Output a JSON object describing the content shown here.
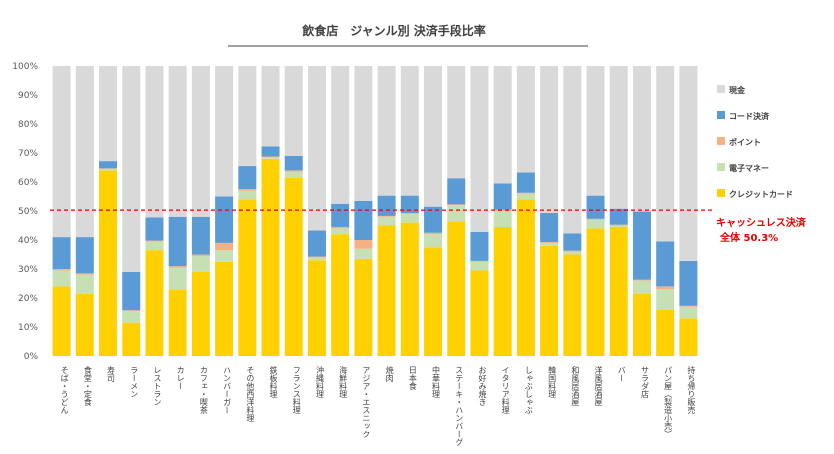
{
  "chart_data": {
    "type": "bar",
    "stacked": true,
    "percent": true,
    "title": "飲食店　ジャンル別 決済手段比率",
    "ylim": [
      0,
      100
    ],
    "yticks": [
      "0%",
      "10%",
      "20%",
      "30%",
      "40%",
      "50%",
      "60%",
      "70%",
      "80%",
      "90%",
      "100%"
    ],
    "categories": [
      "そば・うどん",
      "食堂・定食",
      "寿司",
      "ラーメン",
      "レストラン",
      "カレー",
      "カフェ・喫茶",
      "ハンバーガー",
      "その他西洋料理",
      "鉄板料理",
      "フランス料理",
      "沖縄料理",
      "海鮮料理",
      "アジア・エスニック",
      "焼肉",
      "日本食",
      "中華料理",
      "ステーキ・ハンバーグ",
      "お好み焼き",
      "イタリア料理",
      "しゃぶしゃぶ",
      "韓国料理",
      "和風居酒屋",
      "洋風居酒屋",
      "バー",
      "サラダ店",
      "パン屋（製造小売）",
      "持ち帰り販売"
    ],
    "series": [
      {
        "name": "クレジットカード",
        "color": "#ffd100",
        "values": [
          24,
          21.5,
          64,
          11.5,
          36.5,
          23,
          29,
          32.5,
          54,
          68,
          61.5,
          33,
          42,
          33.5,
          45,
          46,
          37.5,
          46.5,
          29.5,
          44.5,
          54,
          38,
          35,
          44,
          44.5,
          21.5,
          16,
          13
        ]
      },
      {
        "name": "電子マネー",
        "color": "#c6e0b4",
        "values": [
          5.5,
          6.5,
          0.5,
          4,
          3,
          7.5,
          5.5,
          4,
          3,
          0.5,
          2,
          1,
          2,
          3.5,
          3,
          3,
          4.5,
          5.5,
          3,
          5.5,
          2,
          1,
          1,
          3,
          0.5,
          4.5,
          7,
          4
        ]
      },
      {
        "name": "ポイント",
        "color": "#f4b183",
        "values": [
          0.5,
          0.5,
          0.2,
          0.3,
          0.3,
          0.5,
          0.5,
          2.5,
          0.5,
          0.3,
          0.5,
          0.3,
          0.5,
          3,
          0.3,
          0.3,
          0.5,
          0.3,
          0.3,
          0.5,
          0.3,
          0.3,
          0.3,
          0.3,
          0.3,
          0.3,
          1,
          0.3
        ]
      },
      {
        "name": "コード決済",
        "color": "#5b9bd5",
        "values": [
          11,
          12.5,
          2.5,
          13.2,
          8,
          17,
          13,
          16,
          8,
          3.5,
          5,
          9,
          8,
          13.5,
          7,
          6,
          9,
          9,
          10,
          9,
          7,
          10,
          6,
          8,
          5.5,
          23.5,
          15.5,
          15.5
        ]
      },
      {
        "name": "現金",
        "color": "#d9d9d9",
        "values": [
          59,
          59,
          32.8,
          71,
          52.2,
          52,
          52,
          45,
          34.5,
          27.7,
          31,
          56.7,
          47.5,
          46.5,
          44.7,
          44.7,
          48.5,
          38.7,
          57.2,
          40.5,
          36.7,
          50.7,
          57.7,
          44.7,
          49.2,
          50.2,
          60.5,
          67.2
        ]
      }
    ],
    "legend_order": [
      "現金",
      "コード決済",
      "ポイント",
      "電子マネー",
      "クレジットカード"
    ],
    "legend_position": "right",
    "reference_line": {
      "value": 50.3,
      "label_line1": "キャッシュレス決済",
      "label_line2": "全体 50.3%",
      "color": "#e60000"
    }
  }
}
